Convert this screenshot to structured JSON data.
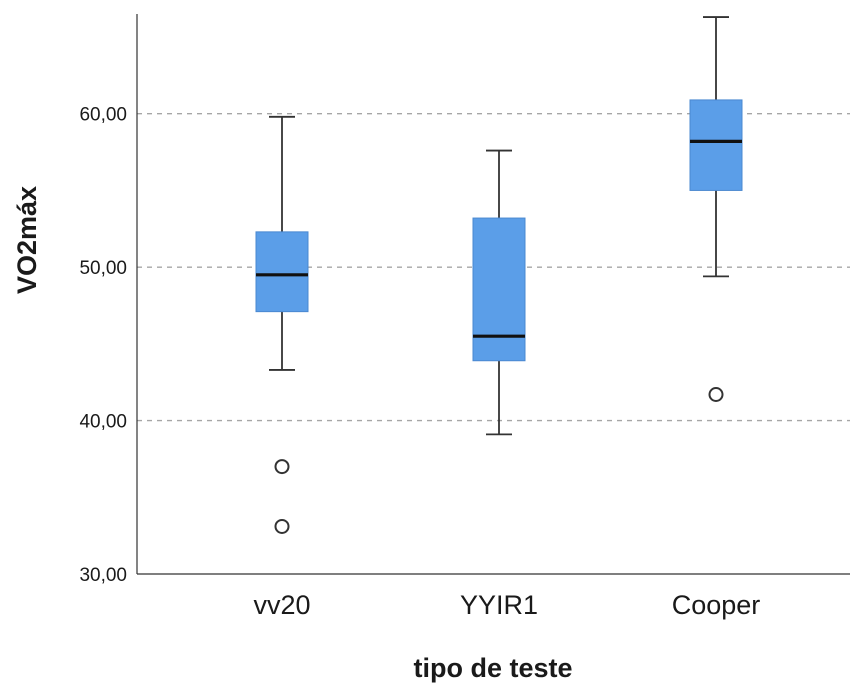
{
  "chart_data": {
    "type": "boxplot",
    "title": "",
    "xlabel": "tipo de teste",
    "ylabel": "VO2máx",
    "ylim": [
      30,
      66.5
    ],
    "yticks": [
      30,
      40,
      50,
      60
    ],
    "ytick_labels": [
      "30,00",
      "40,00",
      "50,00",
      "60,00"
    ],
    "gridlines_at": [
      40,
      50,
      60
    ],
    "grid": "dashed horizontal",
    "box_color": "#5b9ee8",
    "categories": [
      "vv20",
      "YYIR1",
      "Cooper"
    ],
    "boxes": [
      {
        "category": "vv20",
        "whisker_low": 43.3,
        "q1": 47.1,
        "median": 49.5,
        "q3": 52.3,
        "whisker_high": 59.8,
        "outliers": [
          37.0,
          33.1
        ]
      },
      {
        "category": "YYIR1",
        "whisker_low": 39.1,
        "q1": 43.9,
        "median": 45.5,
        "q3": 53.2,
        "whisker_high": 57.6,
        "outliers": []
      },
      {
        "category": "Cooper",
        "whisker_low": 49.4,
        "q1": 55.0,
        "median": 58.2,
        "q3": 60.9,
        "whisker_high": 66.3,
        "outliers": [
          41.7
        ]
      }
    ]
  }
}
